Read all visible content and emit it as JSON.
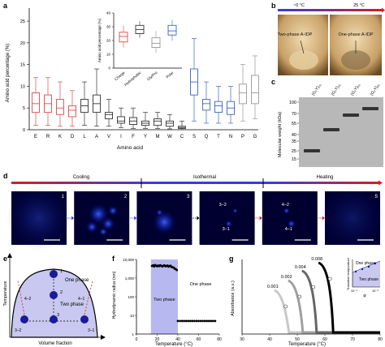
{
  "panel_labels": [
    "a",
    "b",
    "c",
    "d",
    "e",
    "f",
    "g"
  ],
  "panel_a": {
    "ylabel": "Amino acid percentage (%)",
    "xlabel": "Amino acid",
    "yticks": [
      "0",
      "5",
      "10",
      "15",
      "20",
      "25"
    ],
    "inset": {
      "ylabel": "Amino acid percentage (%)",
      "yticks": [
        "0",
        "10",
        "20",
        "30",
        "40"
      ],
      "categories": [
        "Charge",
        "Hydrophobic",
        "Gly/Pro",
        "Polar"
      ]
    }
  },
  "panel_b": {
    "temp_low": "~0 °C",
    "temp_high": "25 °C",
    "left_label": "Two-phase A-IDP",
    "right_label": "One-phase A-IDP"
  },
  "panel_c": {
    "ylabel": "Molecular weight (kDa)",
    "yticks": [
      "15",
      "25",
      "35",
      "40",
      "55",
      "70",
      "100"
    ],
    "lanes": [
      "(G₃Y)₂₀",
      "(G₃Y)₄₀",
      "(G₃Y)₆₀",
      "(G₃Y)₈₀"
    ]
  },
  "panel_d": {
    "phases": [
      "Cooling",
      "Isothermal",
      "Heating"
    ],
    "frames": [
      {
        "num": "1"
      },
      {
        "num": "2"
      },
      {
        "num": "3"
      },
      {
        "num": "",
        "labels": [
          "3–2",
          "3–1"
        ]
      },
      {
        "num": "",
        "labels": [
          "4–2",
          "4–1"
        ]
      },
      {
        "num": "5"
      }
    ]
  },
  "panel_e": {
    "ylabel": "Temperature",
    "xlabel": "Volume fraction",
    "one_phase": "One phase",
    "two_phase": "Two phase",
    "points": [
      "1",
      "2",
      "3"
    ],
    "branches": [
      "4–2",
      "4–1",
      "3–2",
      "3–1"
    ]
  },
  "panel_f": {
    "ylabel": "Hydrodynamic radius (nm)",
    "xlabel": "Temperature (°C)",
    "yticks": [
      "1",
      "10",
      "100",
      "1,000",
      "10,000"
    ],
    "xticks": [
      "0",
      "20",
      "40",
      "60",
      "80"
    ],
    "two_phase": "Two phase",
    "one_phase": "One phase"
  },
  "panel_g": {
    "ylabel": "Absorbance (a.u.)",
    "xlabel": "Temperature (°C)",
    "xticks": [
      "30",
      "40",
      "50",
      "60",
      "70",
      "80"
    ],
    "concentrations": [
      "0.001",
      "0.002",
      "0.004",
      "0.008"
    ],
    "inset": {
      "ylabel": "Transition temperature",
      "xlabel": "φ",
      "xticks": [
        "10⁻⁴",
        "10⁻²"
      ],
      "one_phase": "One phase",
      "two_phase": "Two phase"
    }
  },
  "colors": {
    "charge": "#e04a4a",
    "hydrophobic": "#333333",
    "glypro": "#999999",
    "polar": "#3a64c8",
    "accent_blue": "#3a3ae0",
    "accent_red": "#d02020"
  },
  "chart_data": [
    {
      "type": "box",
      "categories": [
        "E",
        "R",
        "K",
        "D",
        "L",
        "A",
        "V",
        "I",
        "F",
        "Y",
        "M",
        "W",
        "C",
        "S",
        "Q",
        "T",
        "N",
        "P",
        "G"
      ],
      "groups": [
        "Charge",
        "Charge",
        "Charge",
        "Charge",
        "Hydrophobic",
        "Hydrophobic",
        "Hydrophobic",
        "Hydrophobic",
        "Hydrophobic",
        "Hydrophobic",
        "Hydrophobic",
        "Hydrophobic",
        "Hydrophobic",
        "Polar",
        "Polar",
        "Polar",
        "Polar",
        "Gly/Pro",
        "Gly/Pro"
      ],
      "median": [
        6,
        6,
        5,
        4.5,
        5.5,
        6,
        3.5,
        2,
        2,
        1.5,
        2,
        1.5,
        0.5,
        11,
        6,
        5.5,
        5,
        8.5,
        8.5
      ],
      "q1": [
        4,
        4,
        3.5,
        3,
        4,
        4,
        2.5,
        1.5,
        1.2,
        1,
        1,
        0.8,
        0.3,
        8,
        4.5,
        4,
        3.5,
        6,
        6
      ],
      "q3": [
        8.5,
        8,
        7,
        5.5,
        7,
        8,
        4,
        3,
        2.8,
        2,
        2.5,
        2,
        0.8,
        14,
        7,
        6.5,
        6.5,
        10.5,
        12.5
      ],
      "whisker_low": [
        1,
        1,
        0.8,
        0.8,
        1,
        0.8,
        0.8,
        0.5,
        0.3,
        0.3,
        0.3,
        0.2,
        0,
        2,
        1.5,
        1.5,
        1.5,
        2,
        2.5
      ],
      "whisker_high": [
        12,
        12,
        11,
        9,
        11,
        14,
        7,
        5,
        5,
        4,
        4,
        3.5,
        2,
        21,
        11,
        10,
        10,
        15,
        17
      ],
      "ylim": [
        0,
        28
      ]
    },
    {
      "type": "box",
      "categories": [
        "Charge",
        "Hydrophobic",
        "Gly/Pro",
        "Polar"
      ],
      "median": [
        23,
        28,
        18,
        27
      ],
      "q1": [
        19,
        25,
        15,
        24
      ],
      "q3": [
        26,
        31,
        22,
        31
      ],
      "whisker_low": [
        15,
        22,
        11,
        20
      ],
      "whisker_high": [
        31,
        34,
        27,
        35
      ],
      "ylim": [
        0,
        40
      ]
    },
    {
      "type": "scatter",
      "x": [
        15,
        16,
        17,
        18,
        19,
        20,
        21,
        22,
        23,
        24,
        25,
        26,
        27,
        28,
        29,
        30,
        31,
        32,
        33,
        34,
        35,
        36,
        37,
        38,
        39,
        40,
        42,
        44,
        46,
        48,
        50,
        52,
        54,
        56,
        58,
        60,
        62,
        64,
        66,
        68,
        70,
        72,
        74,
        76
      ],
      "y": [
        4500,
        4800,
        4200,
        5000,
        4600,
        4300,
        4700,
        4400,
        4900,
        4500,
        4200,
        4600,
        4800,
        4300,
        4500,
        4700,
        4100,
        4400,
        4600,
        3900,
        3800,
        3600,
        3200,
        3000,
        2700,
        5,
        5,
        5,
        5,
        5,
        5,
        5,
        5,
        5,
        5,
        5,
        5,
        5,
        5,
        5,
        5,
        5,
        5,
        5
      ],
      "xlim": [
        0,
        80
      ],
      "ylog": true,
      "ylim": [
        1,
        10000
      ]
    },
    {
      "type": "line",
      "series": [
        {
          "name": "0.001",
          "transition_x": 47
        },
        {
          "name": "0.002",
          "transition_x": 52
        },
        {
          "name": "0.004",
          "transition_x": 57
        },
        {
          "name": "0.008",
          "transition_x": 63
        }
      ],
      "xlim": [
        30,
        80
      ]
    }
  ]
}
